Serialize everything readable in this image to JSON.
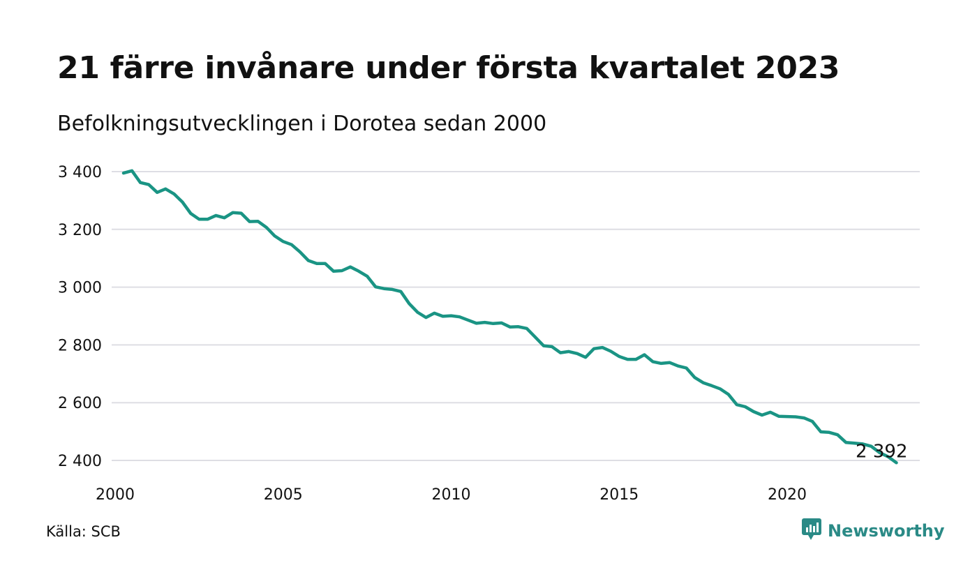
{
  "title": "21 färre invånare under första kvartalet 2023",
  "subtitle": "Befolkningsutvecklingen i Dorotea sedan 2000",
  "source": "Källa: SCB",
  "brand": {
    "name": "Newsworthy",
    "icon": "newsworthy-logo-icon",
    "color": "#2a8a86"
  },
  "colors": {
    "line": "#1a9484",
    "grid": "#dedee4"
  },
  "chart_data": {
    "type": "line",
    "title": "21 färre invånare under första kvartalet 2023",
    "subtitle": "Befolkningsutvecklingen i Dorotea sedan 2000",
    "xlabel": "",
    "ylabel": "",
    "xlim": [
      2000,
      2024
    ],
    "ylim": [
      2390,
      3410
    ],
    "x_ticks": [
      2000,
      2005,
      2010,
      2015,
      2020
    ],
    "x_tick_labels": [
      "2000",
      "2005",
      "2010",
      "2015",
      "2020"
    ],
    "y_ticks": [
      2400,
      2600,
      2800,
      3000,
      3200,
      3400
    ],
    "y_tick_labels": [
      "2 400",
      "2 600",
      "2 800",
      "3 000",
      "3 200",
      "3 400"
    ],
    "grid": "horizontal",
    "end_label": "2 392",
    "series": [
      {
        "values": [
          [
            2000.25,
            3395
          ],
          [
            2000.5,
            3403
          ],
          [
            2000.75,
            3362
          ],
          [
            2001.0,
            3355
          ],
          [
            2001.25,
            3328
          ],
          [
            2001.5,
            3340
          ],
          [
            2001.75,
            3323
          ],
          [
            2002.0,
            3295
          ],
          [
            2002.25,
            3255
          ],
          [
            2002.5,
            3235
          ],
          [
            2002.75,
            3235
          ],
          [
            2003.0,
            3248
          ],
          [
            2003.25,
            3240
          ],
          [
            2003.5,
            3258
          ],
          [
            2003.75,
            3256
          ],
          [
            2004.0,
            3227
          ],
          [
            2004.25,
            3228
          ],
          [
            2004.5,
            3207
          ],
          [
            2004.75,
            3177
          ],
          [
            2005.0,
            3158
          ],
          [
            2005.25,
            3147
          ],
          [
            2005.5,
            3122
          ],
          [
            2005.75,
            3092
          ],
          [
            2006.0,
            3082
          ],
          [
            2006.25,
            3082
          ],
          [
            2006.5,
            3055
          ],
          [
            2006.75,
            3057
          ],
          [
            2007.0,
            3070
          ],
          [
            2007.25,
            3055
          ],
          [
            2007.5,
            3038
          ],
          [
            2007.75,
            3001
          ],
          [
            2008.0,
            2995
          ],
          [
            2008.25,
            2992
          ],
          [
            2008.5,
            2985
          ],
          [
            2008.75,
            2943
          ],
          [
            2009.0,
            2913
          ],
          [
            2009.25,
            2895
          ],
          [
            2009.5,
            2910
          ],
          [
            2009.75,
            2899
          ],
          [
            2010.0,
            2901
          ],
          [
            2010.25,
            2897
          ],
          [
            2010.5,
            2886
          ],
          [
            2010.75,
            2875
          ],
          [
            2011.0,
            2878
          ],
          [
            2011.25,
            2874
          ],
          [
            2011.5,
            2876
          ],
          [
            2011.75,
            2862
          ],
          [
            2012.0,
            2863
          ],
          [
            2012.25,
            2857
          ],
          [
            2012.5,
            2827
          ],
          [
            2012.75,
            2797
          ],
          [
            2013.0,
            2794
          ],
          [
            2013.25,
            2773
          ],
          [
            2013.5,
            2777
          ],
          [
            2013.75,
            2770
          ],
          [
            2014.0,
            2757
          ],
          [
            2014.25,
            2787
          ],
          [
            2014.5,
            2791
          ],
          [
            2014.75,
            2778
          ],
          [
            2015.0,
            2760
          ],
          [
            2015.25,
            2750
          ],
          [
            2015.5,
            2750
          ],
          [
            2015.75,
            2766
          ],
          [
            2016.0,
            2742
          ],
          [
            2016.25,
            2736
          ],
          [
            2016.5,
            2739
          ],
          [
            2016.75,
            2727
          ],
          [
            2017.0,
            2720
          ],
          [
            2017.25,
            2687
          ],
          [
            2017.5,
            2669
          ],
          [
            2017.75,
            2659
          ],
          [
            2018.0,
            2648
          ],
          [
            2018.25,
            2629
          ],
          [
            2018.5,
            2593
          ],
          [
            2018.75,
            2586
          ],
          [
            2019.0,
            2569
          ],
          [
            2019.25,
            2557
          ],
          [
            2019.5,
            2567
          ],
          [
            2019.75,
            2553
          ],
          [
            2020.0,
            2552
          ],
          [
            2020.25,
            2551
          ],
          [
            2020.5,
            2547
          ],
          [
            2020.75,
            2535
          ],
          [
            2021.0,
            2499
          ],
          [
            2021.25,
            2497
          ],
          [
            2021.5,
            2489
          ],
          [
            2021.75,
            2462
          ],
          [
            2022.0,
            2460
          ],
          [
            2022.25,
            2457
          ],
          [
            2022.5,
            2449
          ],
          [
            2022.75,
            2427
          ],
          [
            2023.0,
            2413
          ],
          [
            2023.25,
            2392
          ]
        ]
      }
    ]
  }
}
